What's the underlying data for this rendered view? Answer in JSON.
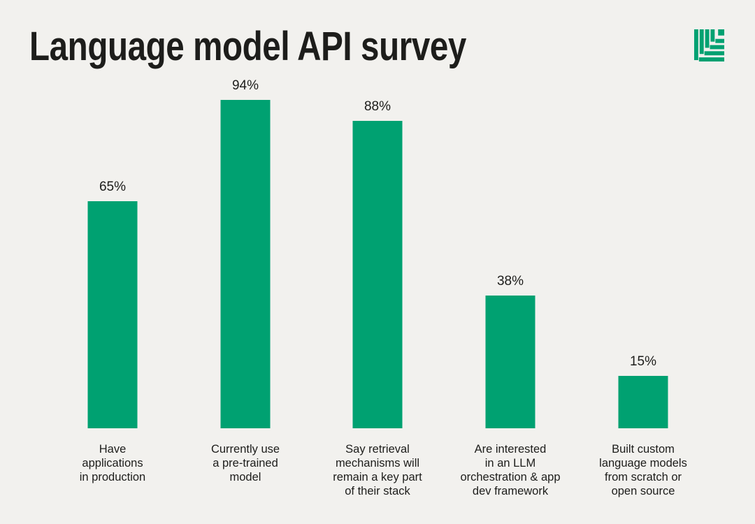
{
  "title": "Language model API survey",
  "logo": {
    "name": "striped-leaf-logo"
  },
  "colors": {
    "accent_green": "#00a171",
    "background": "#f2f1ee",
    "text": "#1d1d1b"
  },
  "chart_data": {
    "type": "bar",
    "title": "Language model API survey",
    "categories": [
      "Have\napplications\nin production",
      "Currently use\na pre-trained\nmodel",
      "Say retrieval\nmechanisms will\nremain a key part\nof their stack",
      "Are interested\nin an LLM\norchestration & app\ndev framework",
      "Built custom\nlanguage models\nfrom scratch or\nopen source"
    ],
    "values": [
      65,
      94,
      88,
      38,
      15
    ],
    "value_labels": [
      "65%",
      "94%",
      "88%",
      "38%",
      "15%"
    ],
    "unit": "%",
    "ylim": [
      0,
      100
    ],
    "grid": false,
    "axes_shown": false,
    "bar_color": "#00a171",
    "value_label_position": "above-bar",
    "category_label_position": "below-bar",
    "legend": null
  }
}
